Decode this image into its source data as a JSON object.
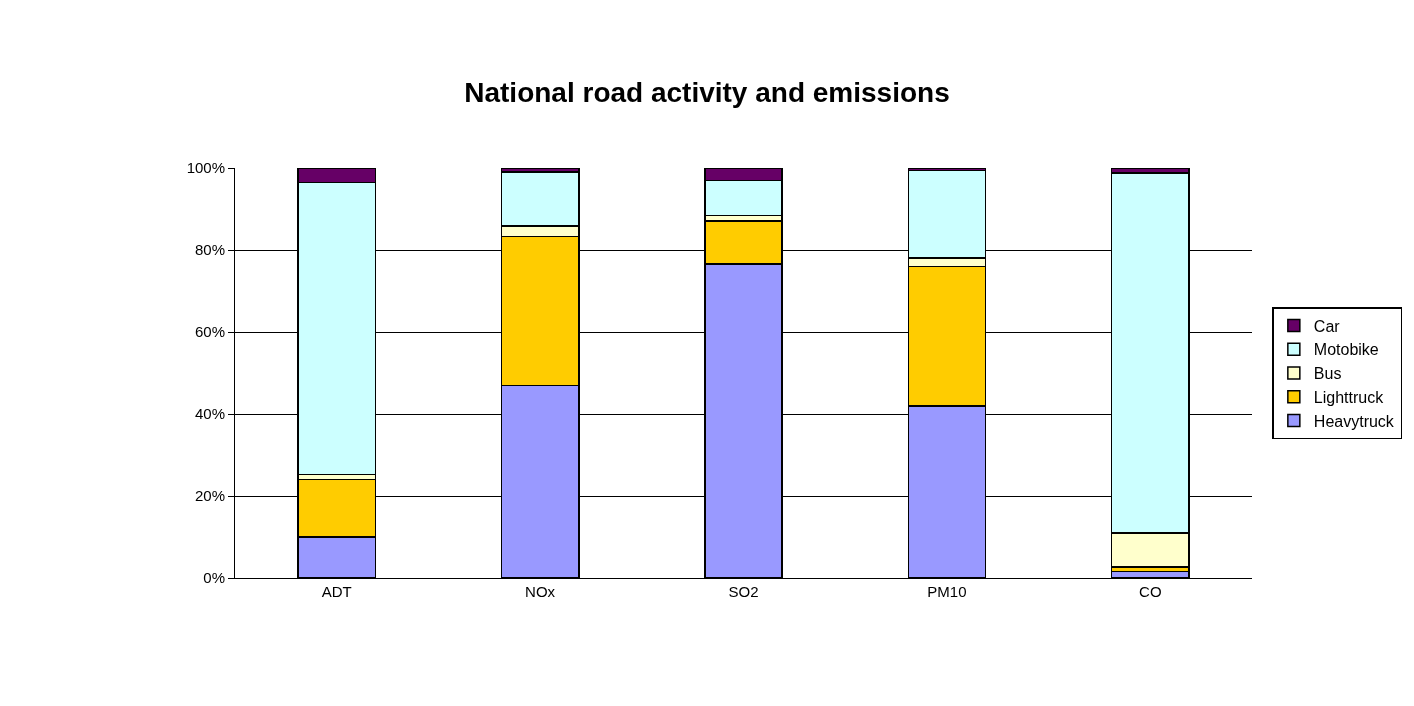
{
  "chart_data": {
    "type": "bar",
    "title": "National road activity and emissions",
    "stacked": true,
    "categories": [
      "ADT",
      "NOx",
      "SO2",
      "PM10",
      "CO"
    ],
    "series": [
      {
        "name": "Heavytruck",
        "color": "#9999ff",
        "values": [
          10,
          47,
          76.6,
          42,
          1.6
        ]
      },
      {
        "name": "Lighttruck",
        "color": "#ffcc00",
        "values": [
          14,
          36.3,
          10.5,
          34,
          1.1
        ]
      },
      {
        "name": "Bus",
        "color": "#ffffcc",
        "values": [
          1.3,
          2.6,
          1.3,
          2,
          8.3
        ]
      },
      {
        "name": "Motobike",
        "color": "#ccffff",
        "values": [
          71.2,
          13.1,
          8.5,
          21.4,
          87.8
        ]
      },
      {
        "name": "Car",
        "color": "#660066",
        "values": [
          3.5,
          1,
          3.1,
          0.6,
          1.2
        ]
      }
    ],
    "ylim": [
      0,
      100
    ],
    "yticks": [
      {
        "value": 0,
        "label": "0%"
      },
      {
        "value": 20,
        "label": "20%"
      },
      {
        "value": 40,
        "label": "40%"
      },
      {
        "value": 60,
        "label": "60%"
      },
      {
        "value": 80,
        "label": "80%"
      },
      {
        "value": 100,
        "label": "100%"
      }
    ],
    "grid": "y",
    "legend": "right"
  }
}
